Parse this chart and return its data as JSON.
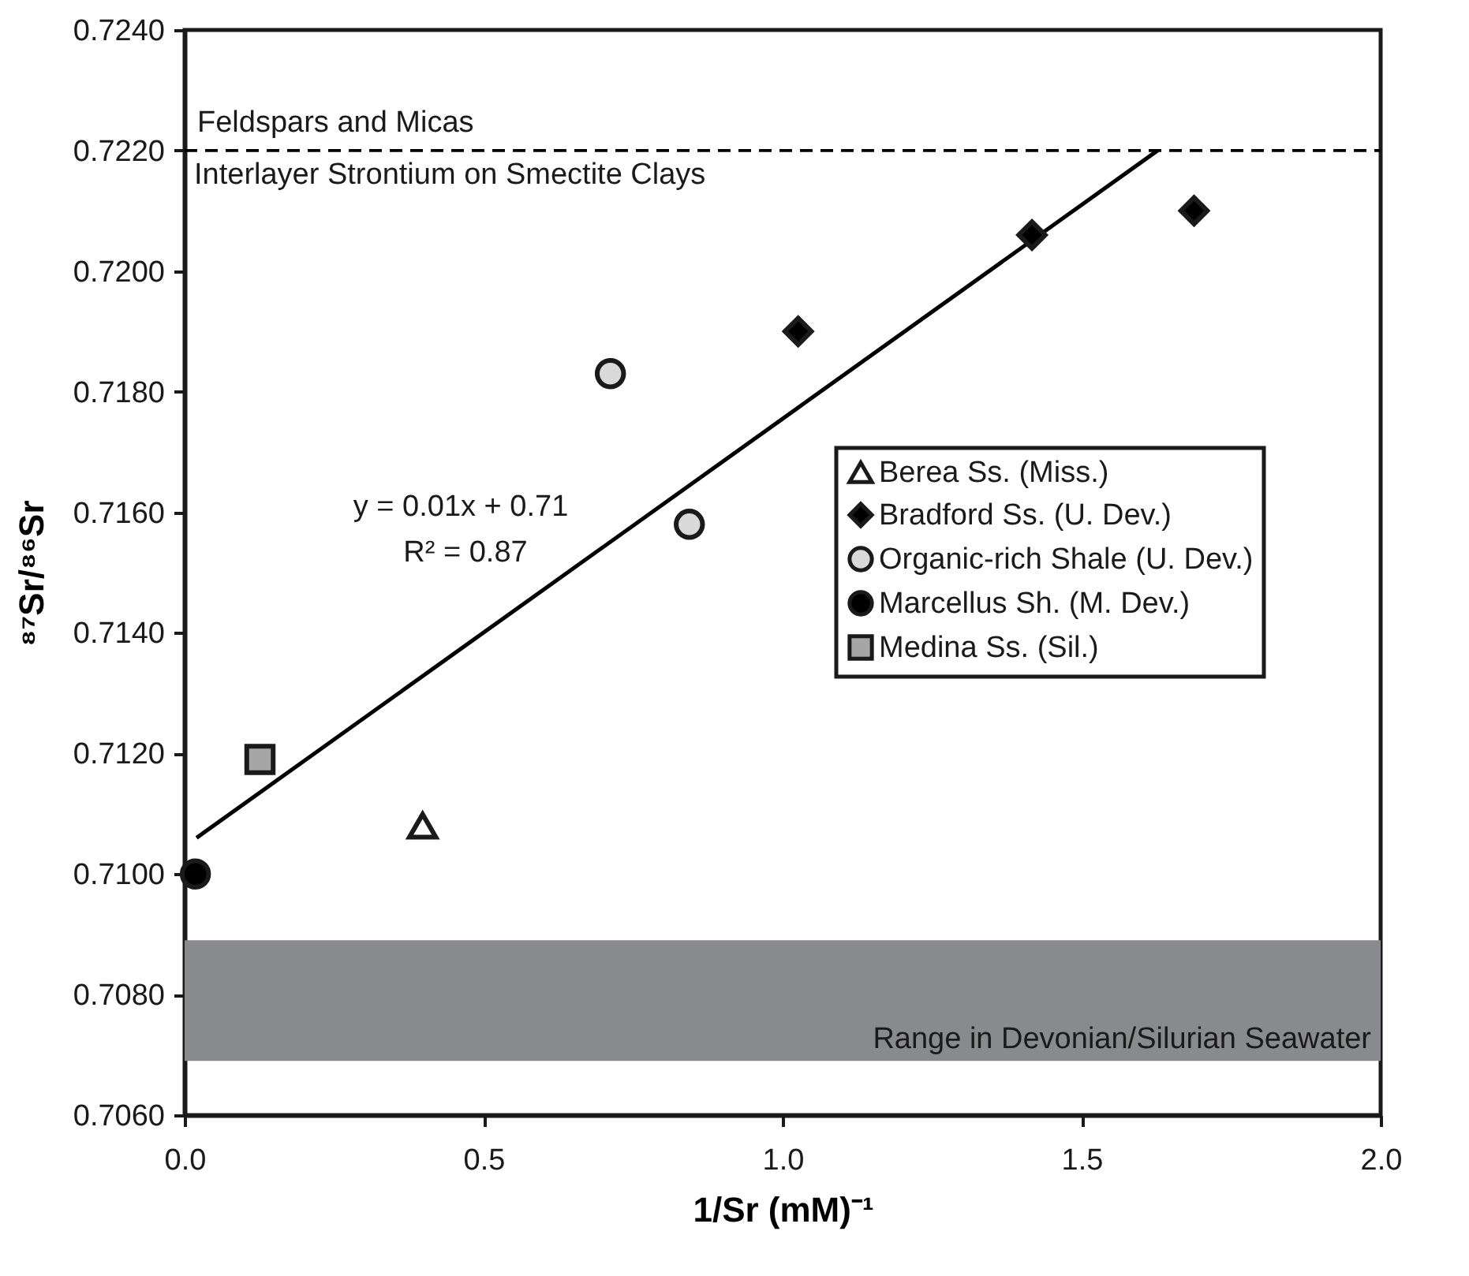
{
  "chart_data": {
    "type": "scatter",
    "xlabel": "1/Sr (mM)⁻¹",
    "ylabel": "⁸⁷Sr/⁸⁶Sr",
    "xlim": [
      0,
      2
    ],
    "xticks": [
      {
        "value": 0,
        "label": "0.0"
      },
      {
        "value": 0.5,
        "label": "0.5"
      },
      {
        "value": 1,
        "label": "1.0"
      },
      {
        "value": 1.5,
        "label": "1.5"
      },
      {
        "value": 2,
        "label": "2.0"
      }
    ],
    "ylim": [
      0.706,
      0.724
    ],
    "yticks": [
      {
        "value": 0.706,
        "label": "0.7060"
      },
      {
        "value": 0.708,
        "label": "0.7080"
      },
      {
        "value": 0.71,
        "label": "0.7100"
      },
      {
        "value": 0.712,
        "label": "0.7120"
      },
      {
        "value": 0.714,
        "label": "0.7140"
      },
      {
        "value": 0.716,
        "label": "0.7160"
      },
      {
        "value": 0.718,
        "label": "0.7180"
      },
      {
        "value": 0.72,
        "label": "0.7200"
      },
      {
        "value": 0.722,
        "label": "0.7220"
      },
      {
        "value": 0.724,
        "label": "0.7240"
      }
    ],
    "grid": false,
    "legend": "right",
    "series": [
      {
        "name": "Berea Ss. (Miss.)",
        "color": "#ffffff",
        "marker": "triangle",
        "x": [
          0.398
        ],
        "values": [
          0.7108
        ]
      },
      {
        "name": "Bradford Ss. (U. Dev.)",
        "color": "#000000",
        "marker": "diamond",
        "x": [
          1.026,
          1.417,
          1.688
        ],
        "values": [
          0.719,
          0.7206,
          0.721
        ]
      },
      {
        "name": "Organic-rich Shale (U. Dev.)",
        "color": "#d9d9d9",
        "marker": "circle",
        "x": [
          0.712,
          0.844
        ],
        "values": [
          0.7183,
          0.7158
        ]
      },
      {
        "name": "Marcellus Sh. (M. Dev.)",
        "color": "#000000",
        "marker": "circle",
        "x": [
          0.018
        ],
        "values": [
          0.71
        ]
      },
      {
        "name": "Medina Ss. (Sil.)",
        "color": "#a6a6a6",
        "marker": "square",
        "x": [
          0.126
        ],
        "values": [
          0.7119
        ]
      },
      {
        "type": "line",
        "color": "#000000",
        "marker": "none",
        "x": [
          0.02,
          1.627
        ],
        "values": [
          0.7106,
          0.722
        ]
      }
    ],
    "ref_lines": [
      {
        "axis": "y",
        "value": 0.722,
        "label": "Feldspars and Micas",
        "color": "#000000",
        "line_style": "dashed"
      }
    ],
    "bands": [
      {
        "axis": "y",
        "from": 0.7069,
        "to": 0.7089,
        "label": "Range in Devonian/Silurian Seawater",
        "color": "#898a8d"
      }
    ],
    "annotations": [
      {
        "text": "Interlayer Strontium on Smectite Clays",
        "x": 0,
        "y": 0.722
      },
      "y = 0.01x + 0.71",
      "R² = 0.87"
    ]
  }
}
